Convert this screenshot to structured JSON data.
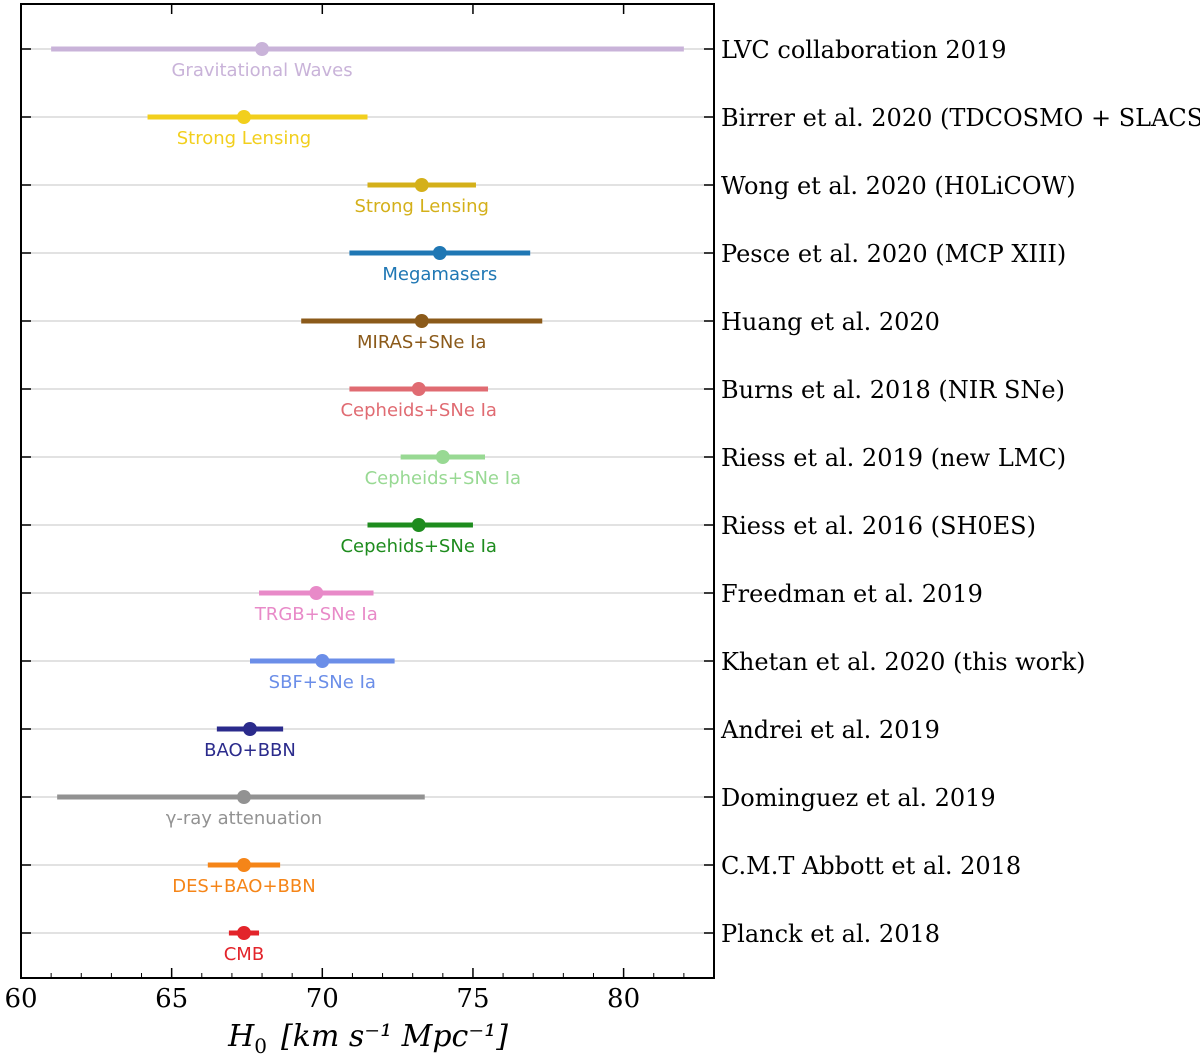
{
  "chart_data": {
    "type": "forest",
    "title": "",
    "xlabel": "H",
    "xlabel_sub": "0",
    "xlabel_units": "[km s⁻¹ Mpc⁻¹]",
    "xlim": [
      60,
      83
    ],
    "xticks": [
      60,
      65,
      70,
      75,
      80
    ],
    "grid": "horizontal",
    "measurements": [
      {
        "ref": "LVC collaboration 2019",
        "method": "Gravitational Waves",
        "value": 68.0,
        "low": 61.0,
        "high": 82.0,
        "color": "#c9b3d9"
      },
      {
        "ref": "Birrer et al. 2020 (TDCOSMO + SLACS)",
        "method": "Strong Lensing",
        "value": 67.4,
        "low": 64.2,
        "high": 71.5,
        "color": "#f2cf1d"
      },
      {
        "ref": "Wong et al. 2020 (H0LiCOW)",
        "method": "Strong Lensing",
        "value": 73.3,
        "low": 71.5,
        "high": 75.1,
        "color": "#d4b01a"
      },
      {
        "ref": "Pesce et al. 2020 (MCP XIII)",
        "method": "Megamasers",
        "value": 73.9,
        "low": 70.9,
        "high": 76.9,
        "color": "#1f77b4"
      },
      {
        "ref": "Huang et al. 2020",
        "method": "MIRAS+SNe Ia",
        "value": 73.3,
        "low": 69.3,
        "high": 77.3,
        "color": "#8b5a1a"
      },
      {
        "ref": "Burns et al. 2018 (NIR SNe)",
        "method": "Cepheids+SNe Ia",
        "value": 73.2,
        "low": 70.9,
        "high": 75.5,
        "color": "#e06b72"
      },
      {
        "ref": "Riess et al. 2019 (new LMC)",
        "method": "Cepheids+SNe Ia",
        "value": 74.0,
        "low": 72.6,
        "high": 75.4,
        "color": "#98d993"
      },
      {
        "ref": "Riess et al. 2016 (SH0ES)",
        "method": "Cepehids+SNe Ia",
        "value": 73.2,
        "low": 71.5,
        "high": 75.0,
        "color": "#1e8c1e"
      },
      {
        "ref": "Freedman et al. 2019",
        "method": "TRGB+SNe Ia",
        "value": 69.8,
        "low": 67.9,
        "high": 71.7,
        "color": "#e88ac8"
      },
      {
        "ref": "Khetan et al. 2020 (this work)",
        "method": "SBF+SNe Ia",
        "value": 70.0,
        "low": 67.6,
        "high": 72.4,
        "color": "#6b8ee8"
      },
      {
        "ref": "Andrei et al. 2019",
        "method": "BAO+BBN",
        "value": 67.6,
        "low": 66.5,
        "high": 68.7,
        "color": "#2b2b8c"
      },
      {
        "ref": "Dominguez et al. 2019",
        "method": "γ-ray attenuation",
        "value": 67.4,
        "low": 61.2,
        "high": 73.4,
        "color": "#929292"
      },
      {
        "ref": "C.M.T Abbott et al. 2018",
        "method": "DES+BAO+BBN",
        "value": 67.4,
        "low": 66.2,
        "high": 68.6,
        "color": "#f58518"
      },
      {
        "ref": "Planck et al. 2018",
        "method": "CMB",
        "value": 67.4,
        "low": 66.9,
        "high": 67.9,
        "color": "#e3242b"
      }
    ]
  }
}
